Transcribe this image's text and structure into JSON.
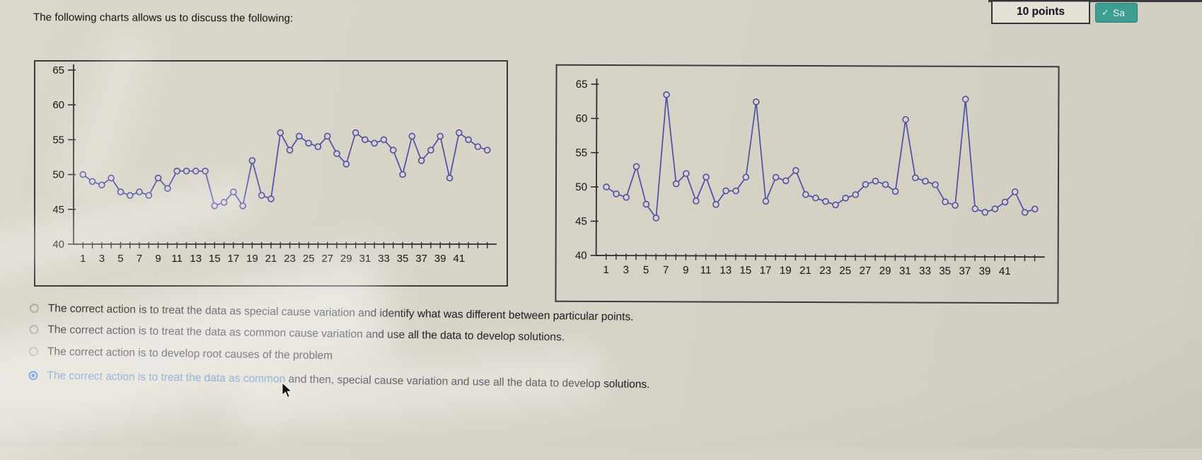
{
  "page": {
    "question_text": "The following charts allows us to discuss the following:",
    "points_label": "10 points",
    "save_button": {
      "check_icon": "✓",
      "label": "Sa"
    }
  },
  "colors": {
    "background": "#d7d3c7",
    "line": "#4f4fa6",
    "axis": "#2e2e33",
    "text": "#1c1c1c",
    "selected_option": "#2a6fd2",
    "highlight_text": "#4f83c4",
    "save_button_bg": "#3d9e92"
  },
  "options": [
    {
      "text": "The correct action is to treat the data as special cause variation and identify what was different between particular points.",
      "selected": false
    },
    {
      "text": "The correct action is to treat the data as common cause variation and use all the data to develop solutions.",
      "selected": false
    },
    {
      "text": "The correct action is to develop root causes of the problem",
      "selected": false
    },
    {
      "text_highlight": "The correct action is to treat the data as common",
      "text_rest": " and then, special cause variation and use all the data to develop solutions.",
      "selected": true
    }
  ],
  "chart_data": [
    {
      "type": "line",
      "title": "",
      "xlabel": "",
      "ylabel": "",
      "ylim": [
        40,
        65
      ],
      "yticks": [
        40,
        45,
        50,
        55,
        60,
        65
      ],
      "xtick_labels": [
        1,
        3,
        5,
        7,
        9,
        11,
        13,
        15,
        17,
        19,
        21,
        23,
        25,
        27,
        29,
        31,
        33,
        35,
        37,
        39,
        41
      ],
      "x": [
        1,
        2,
        3,
        4,
        5,
        6,
        7,
        8,
        9,
        10,
        11,
        12,
        13,
        14,
        15,
        16,
        17,
        18,
        19,
        20,
        21,
        22,
        23,
        24,
        25,
        26,
        27,
        28,
        29,
        30,
        31,
        32,
        33,
        34,
        35,
        36,
        37,
        38,
        39,
        40,
        41,
        42,
        43,
        44
      ],
      "values": [
        50,
        49,
        48.5,
        49.5,
        47.5,
        47,
        47.5,
        47,
        49.5,
        48,
        50.5,
        50.5,
        50.5,
        50.5,
        45.5,
        46,
        47.5,
        45.5,
        52,
        47,
        46.5,
        56,
        53.5,
        55.5,
        54.5,
        54,
        55.5,
        53,
        51.5,
        56,
        55,
        54.5,
        55,
        53.5,
        50,
        55.5,
        52,
        53.5,
        55.5,
        49.5,
        56,
        55,
        54,
        53.5
      ],
      "line_color": "#4f4fa6",
      "marker": "open-circle",
      "legend": null,
      "grid": false
    },
    {
      "type": "line",
      "title": "",
      "xlabel": "",
      "ylabel": "",
      "ylim": [
        40,
        65
      ],
      "yticks": [
        40,
        45,
        50,
        55,
        60,
        65
      ],
      "xtick_labels": [
        1,
        3,
        5,
        7,
        9,
        11,
        13,
        15,
        17,
        19,
        21,
        23,
        25,
        27,
        29,
        31,
        33,
        35,
        37,
        39,
        41
      ],
      "x": [
        1,
        2,
        3,
        4,
        5,
        6,
        7,
        8,
        9,
        10,
        11,
        12,
        13,
        14,
        15,
        16,
        17,
        18,
        19,
        20,
        21,
        22,
        23,
        24,
        25,
        26,
        27,
        28,
        29,
        30,
        31,
        32,
        33,
        34,
        35,
        36,
        37,
        38,
        39,
        40,
        41,
        42,
        43,
        44
      ],
      "values": [
        50,
        49,
        48.5,
        53,
        47.5,
        45.5,
        63.5,
        50.5,
        52,
        48,
        51.5,
        47.5,
        49.5,
        49.5,
        51.5,
        62.5,
        48,
        51.5,
        51,
        52.5,
        49,
        48.5,
        48,
        47.5,
        48.5,
        49,
        50.5,
        51,
        50.5,
        49.5,
        60,
        51.5,
        51,
        50.5,
        48,
        47.5,
        63,
        47,
        46.5,
        47,
        48,
        49.5,
        46.5,
        47
      ],
      "line_color": "#4f4fa6",
      "marker": "open-circle",
      "legend": null,
      "grid": false
    }
  ]
}
